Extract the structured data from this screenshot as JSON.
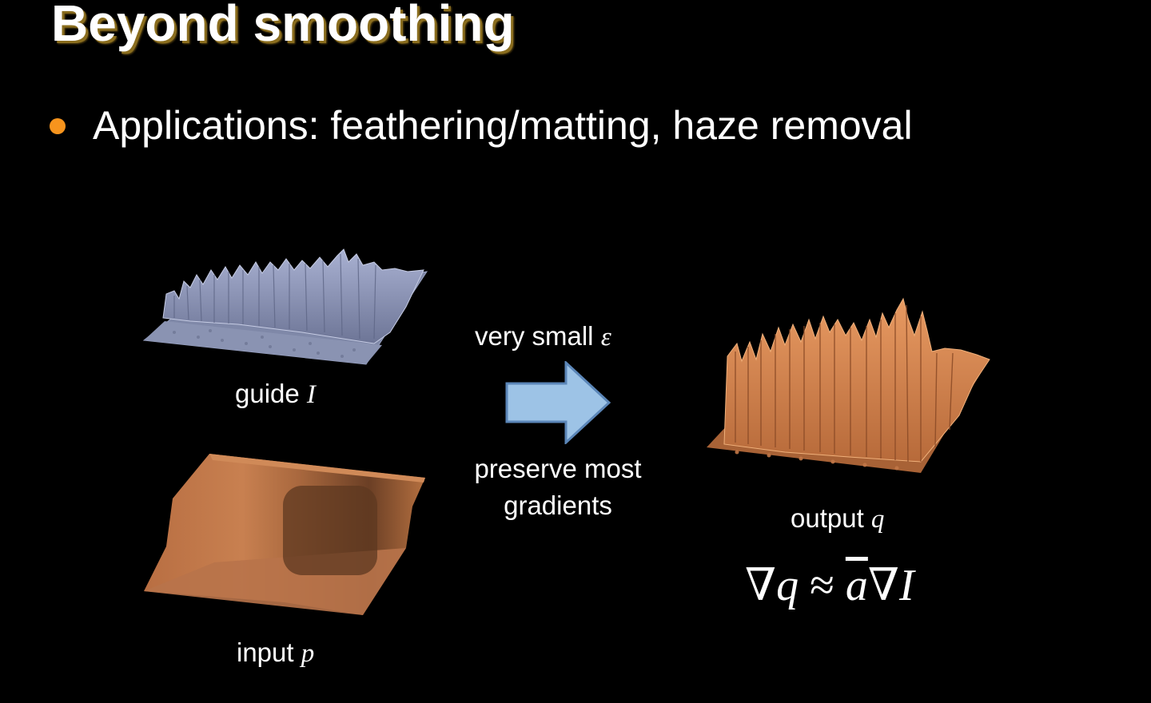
{
  "slide": {
    "title": "Beyond smoothing",
    "bullet": "Applications: feathering/matting, haze removal"
  },
  "figure": {
    "guide_caption": "guide",
    "guide_var": "I",
    "input_caption": "input",
    "input_var": "p",
    "output_caption": "output",
    "output_var": "q",
    "arrow_top_text": "very small",
    "arrow_top_symbol": "ε",
    "arrow_bottom_line1": "preserve most",
    "arrow_bottom_line2": "gradients",
    "equation": {
      "nabla1": "∇",
      "q": "q",
      "approx": "≈",
      "a": "a",
      "nabla2": "∇",
      "I": "I"
    }
  },
  "colors": {
    "bullet": "#f7941d",
    "title_shadow": "#8a6d1e",
    "guide_surface": "#8e97b8",
    "input_surface": "#c47c4e",
    "output_surface": "#d98a55",
    "arrow_fill": "#9dc3e6",
    "arrow_stroke": "#5b86b8"
  }
}
